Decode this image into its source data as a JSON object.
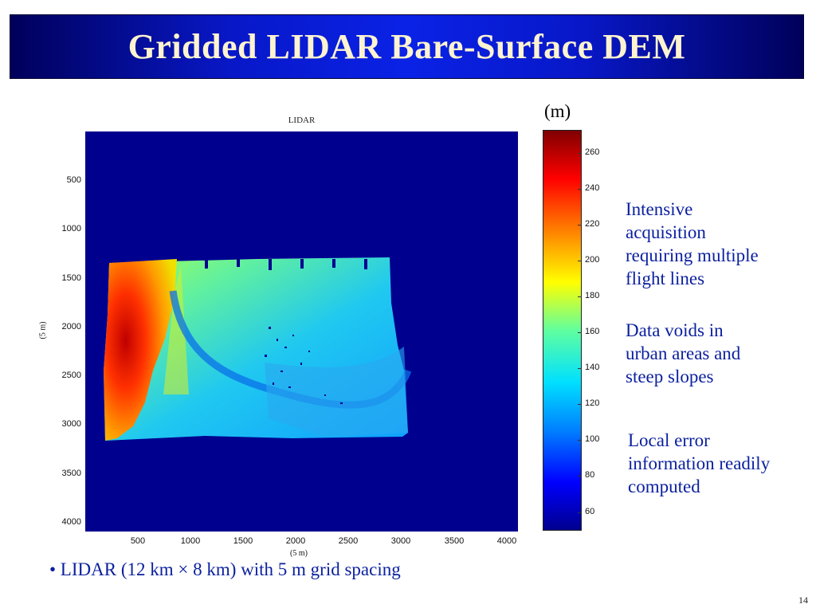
{
  "slide": {
    "title": "Gridded LIDAR Bare-Surface DEM",
    "page_number": "14",
    "bullet": "• LIDAR (12 km × 8 km) with 5 m grid spacing"
  },
  "plot": {
    "title": "LIDAR",
    "xlabel": "(5 m)",
    "ylabel": "(5 m)",
    "x_ticks": [
      "500",
      "1000",
      "1500",
      "2000",
      "2500",
      "3000",
      "3500",
      "4000"
    ],
    "y_ticks": [
      "500",
      "1000",
      "1500",
      "2000",
      "2500",
      "3000",
      "3500",
      "4000"
    ],
    "background_color": "#00008f"
  },
  "colorbar": {
    "unit": "(m)",
    "ticks": [
      "260",
      "240",
      "220",
      "200",
      "180",
      "160",
      "140",
      "120",
      "100",
      "80",
      "60"
    ],
    "range": [
      50,
      275
    ]
  },
  "notes": [
    "Intensive\nacquisition\nrequiring  multiple\nflight lines",
    "Data voids in\nurban areas and\nsteep slopes",
    "Local error\ninformation readily\ncomputed"
  ]
}
